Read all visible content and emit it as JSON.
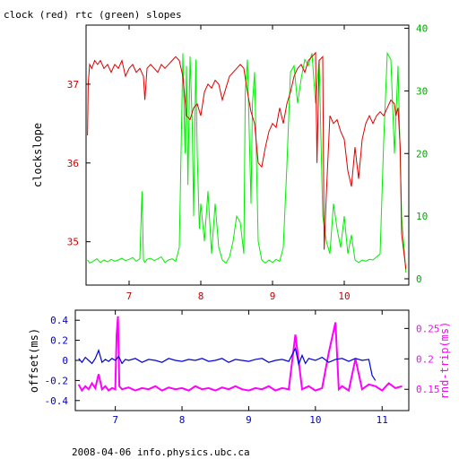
{
  "figure": {
    "title": "clock (red) rtc (green) slopes",
    "footer": "2008-04-06 info.physics.ubc.ca"
  },
  "colors": {
    "red": "#dd0000",
    "green": "#00ee00",
    "blue": "#0000dd",
    "magenta": "#ff00ff",
    "frame": "#000000"
  },
  "chart_data": [
    {
      "type": "line",
      "title": "clock (red) rtc (green) slopes",
      "ylabel": "clockslope",
      "xlim": [
        6.4,
        10.9
      ],
      "ylim": [
        34.45,
        37.75
      ],
      "y2lim": [
        -1,
        40.5
      ],
      "x_ticks": [
        7,
        8,
        9,
        10
      ],
      "y_ticks": [
        35,
        36,
        37
      ],
      "y2_ticks": [
        0,
        10,
        20,
        30,
        40
      ],
      "grid": false,
      "series": [
        {
          "name": "clock",
          "color": "#dd0000",
          "axis": "left",
          "x": [
            6.42,
            6.43,
            6.45,
            6.48,
            6.52,
            6.56,
            6.6,
            6.65,
            6.7,
            6.75,
            6.8,
            6.85,
            6.9,
            6.95,
            7.0,
            7.05,
            7.1,
            7.15,
            7.2,
            7.22,
            7.25,
            7.3,
            7.35,
            7.4,
            7.45,
            7.5,
            7.55,
            7.6,
            7.65,
            7.7,
            7.75,
            7.8,
            7.85,
            7.9,
            7.95,
            8.0,
            8.05,
            8.1,
            8.15,
            8.2,
            8.25,
            8.3,
            8.35,
            8.4,
            8.45,
            8.5,
            8.55,
            8.6,
            8.65,
            8.7,
            8.75,
            8.8,
            8.85,
            8.9,
            8.95,
            9.0,
            9.05,
            9.1,
            9.15,
            9.2,
            9.25,
            9.3,
            9.35,
            9.4,
            9.45,
            9.5,
            9.55,
            9.6,
            9.62,
            9.65,
            9.7,
            9.72,
            9.75,
            9.8,
            9.85,
            9.9,
            9.95,
            10.0,
            10.05,
            10.1,
            10.15,
            10.2,
            10.25,
            10.3,
            10.35,
            10.4,
            10.45,
            10.5,
            10.55,
            10.6,
            10.65,
            10.7,
            10.72,
            10.75,
            10.78,
            10.8,
            10.82,
            10.84,
            10.86
          ],
          "y": [
            36.35,
            37.0,
            37.25,
            37.2,
            37.3,
            37.25,
            37.3,
            37.2,
            37.25,
            37.15,
            37.25,
            37.2,
            37.3,
            37.1,
            37.2,
            37.25,
            37.15,
            37.2,
            37.1,
            36.8,
            37.2,
            37.25,
            37.2,
            37.15,
            37.25,
            37.2,
            37.25,
            37.3,
            37.35,
            37.3,
            37.1,
            36.6,
            36.55,
            36.7,
            36.75,
            36.6,
            36.9,
            37.0,
            36.95,
            37.05,
            37.0,
            36.8,
            36.95,
            37.1,
            37.15,
            37.2,
            37.25,
            37.2,
            36.9,
            36.65,
            36.5,
            36.0,
            35.95,
            36.2,
            36.4,
            36.5,
            36.45,
            36.7,
            36.5,
            36.75,
            36.9,
            37.1,
            37.2,
            37.25,
            37.15,
            37.3,
            37.35,
            37.4,
            36.0,
            37.3,
            37.35,
            34.9,
            35.6,
            36.6,
            36.5,
            36.55,
            36.4,
            36.3,
            35.9,
            35.7,
            36.2,
            35.8,
            36.3,
            36.5,
            36.6,
            36.5,
            36.6,
            36.65,
            36.6,
            36.7,
            36.8,
            36.75,
            36.6,
            36.7,
            36.2,
            35.1,
            34.95,
            34.8,
            34.65
          ]
        },
        {
          "name": "rtc",
          "color": "#00ee00",
          "axis": "right",
          "x": [
            6.42,
            6.45,
            6.5,
            6.55,
            6.6,
            6.65,
            6.7,
            6.75,
            6.8,
            6.85,
            6.9,
            6.95,
            7.0,
            7.05,
            7.1,
            7.15,
            7.18,
            7.2,
            7.22,
            7.25,
            7.3,
            7.35,
            7.4,
            7.45,
            7.5,
            7.55,
            7.6,
            7.65,
            7.7,
            7.75,
            7.78,
            7.8,
            7.82,
            7.85,
            7.88,
            7.9,
            7.93,
            7.95,
            7.98,
            8.0,
            8.05,
            8.1,
            8.15,
            8.2,
            8.25,
            8.3,
            8.35,
            8.4,
            8.45,
            8.5,
            8.55,
            8.6,
            8.62,
            8.65,
            8.7,
            8.72,
            8.75,
            8.8,
            8.85,
            8.9,
            8.95,
            9.0,
            9.05,
            9.1,
            9.15,
            9.2,
            9.25,
            9.3,
            9.35,
            9.4,
            9.45,
            9.5,
            9.55,
            9.6,
            9.65,
            9.7,
            9.75,
            9.8,
            9.85,
            9.9,
            9.95,
            10.0,
            10.05,
            10.1,
            10.15,
            10.2,
            10.25,
            10.3,
            10.35,
            10.4,
            10.45,
            10.5,
            10.55,
            10.6,
            10.65,
            10.7,
            10.75,
            10.8,
            10.84,
            10.86
          ],
          "y": [
            3.0,
            2.5,
            2.8,
            3.2,
            2.6,
            3.0,
            2.7,
            3.1,
            2.8,
            3.0,
            3.3,
            2.9,
            3.1,
            3.4,
            2.8,
            3.2,
            14.0,
            3.0,
            2.6,
            3.1,
            3.3,
            2.9,
            3.2,
            3.5,
            2.6,
            3.0,
            3.2,
            2.8,
            5.0,
            36.0,
            20.0,
            34.0,
            15.0,
            35.5,
            25.0,
            10.0,
            35.0,
            20.0,
            8.0,
            12.0,
            6.0,
            14.0,
            4.0,
            12.0,
            5.0,
            3.0,
            2.5,
            3.5,
            6.0,
            10.0,
            9.0,
            4.0,
            30.0,
            35.0,
            12.0,
            28.0,
            33.0,
            6.0,
            3.0,
            2.5,
            3.0,
            2.6,
            3.1,
            2.8,
            5.0,
            18.0,
            33.0,
            34.0,
            28.0,
            32.0,
            35.0,
            34.0,
            36.0,
            28.0,
            35.0,
            10.0,
            6.0,
            4.0,
            12.0,
            8.0,
            5.0,
            10.0,
            4.0,
            7.0,
            3.0,
            2.6,
            3.0,
            2.8,
            3.1,
            3.0,
            3.5,
            4.0,
            22.0,
            36.0,
            35.0,
            20.0,
            34.0,
            10.0,
            4.0,
            1.0
          ]
        }
      ]
    },
    {
      "type": "line",
      "ylabel": "offset(ms)",
      "y2label": "rnd-trip(ms)",
      "xlim": [
        6.4,
        11.4
      ],
      "ylim": [
        -0.5,
        0.5
      ],
      "y2lim": [
        0.115,
        0.28
      ],
      "x_ticks": [
        7,
        8,
        9,
        10,
        11
      ],
      "y_ticks": [
        -0.4,
        -0.2,
        0,
        0.2,
        0.4
      ],
      "y_tick_labels": [
        "-0.4",
        "-0.2",
        "0",
        "0.2",
        "0.4"
      ],
      "y2_ticks": [
        0.15,
        0.2,
        0.25
      ],
      "y2_tick_labels": [
        "0.15",
        "0.2",
        "0.25"
      ],
      "grid": false,
      "series": [
        {
          "color": "#0000dd",
          "axis": "left",
          "x": [
            6.45,
            6.5,
            6.55,
            6.6,
            6.65,
            6.7,
            6.75,
            6.8,
            6.85,
            6.9,
            6.95,
            7.0,
            7.05,
            7.1,
            7.15,
            7.2,
            7.3,
            7.4,
            7.5,
            7.6,
            7.7,
            7.8,
            7.9,
            8.0,
            8.1,
            8.2,
            8.3,
            8.4,
            8.5,
            8.6,
            8.7,
            8.8,
            8.9,
            9.0,
            9.1,
            9.2,
            9.3,
            9.4,
            9.5,
            9.6,
            9.7,
            9.75,
            9.8,
            9.85,
            9.9,
            10.0,
            10.1,
            10.2,
            10.3,
            10.4,
            10.5,
            10.6,
            10.7,
            10.8,
            10.85,
            10.9
          ],
          "y": [
            0.02,
            -0.02,
            0.03,
            0.0,
            -0.03,
            0.02,
            0.1,
            -0.02,
            0.01,
            -0.01,
            0.02,
            0.0,
            0.04,
            -0.03,
            0.01,
            0.0,
            0.02,
            -0.02,
            0.01,
            0.0,
            -0.02,
            0.02,
            0.0,
            -0.01,
            0.01,
            0.0,
            0.02,
            -0.01,
            0.0,
            0.02,
            -0.02,
            0.01,
            0.0,
            -0.01,
            0.01,
            0.02,
            -0.02,
            0.0,
            0.01,
            -0.01,
            0.12,
            -0.04,
            0.05,
            -0.03,
            0.02,
            0.0,
            0.03,
            -0.02,
            0.01,
            0.02,
            -0.01,
            0.02,
            0.0,
            0.01,
            -0.15,
            -0.2
          ]
        },
        {
          "color": "#ff00ff",
          "axis": "right",
          "x": [
            6.45,
            6.5,
            6.55,
            6.6,
            6.65,
            6.7,
            6.75,
            6.8,
            6.85,
            6.9,
            6.95,
            7.0,
            7.02,
            7.04,
            7.06,
            7.1,
            7.2,
            7.3,
            7.4,
            7.5,
            7.6,
            7.7,
            7.8,
            7.9,
            8.0,
            8.1,
            8.2,
            8.3,
            8.4,
            8.5,
            8.6,
            8.7,
            8.8,
            8.9,
            9.0,
            9.1,
            9.2,
            9.3,
            9.4,
            9.5,
            9.6,
            9.7,
            9.8,
            9.9,
            10.0,
            10.1,
            10.2,
            10.3,
            10.35,
            10.4,
            10.5,
            10.6,
            10.7,
            10.8,
            10.9,
            11.0,
            11.1,
            11.2,
            11.3
          ],
          "y": [
            0.158,
            0.148,
            0.155,
            0.15,
            0.16,
            0.152,
            0.175,
            0.15,
            0.155,
            0.148,
            0.152,
            0.15,
            0.24,
            0.27,
            0.155,
            0.15,
            0.153,
            0.148,
            0.152,
            0.15,
            0.155,
            0.148,
            0.153,
            0.15,
            0.152,
            0.148,
            0.155,
            0.15,
            0.152,
            0.148,
            0.153,
            0.15,
            0.155,
            0.15,
            0.148,
            0.152,
            0.15,
            0.155,
            0.148,
            0.152,
            0.15,
            0.24,
            0.15,
            0.155,
            0.148,
            0.152,
            0.21,
            0.26,
            0.15,
            0.155,
            0.148,
            0.2,
            0.15,
            0.158,
            0.155,
            0.148,
            0.16,
            0.152,
            0.155
          ]
        }
      ]
    }
  ]
}
